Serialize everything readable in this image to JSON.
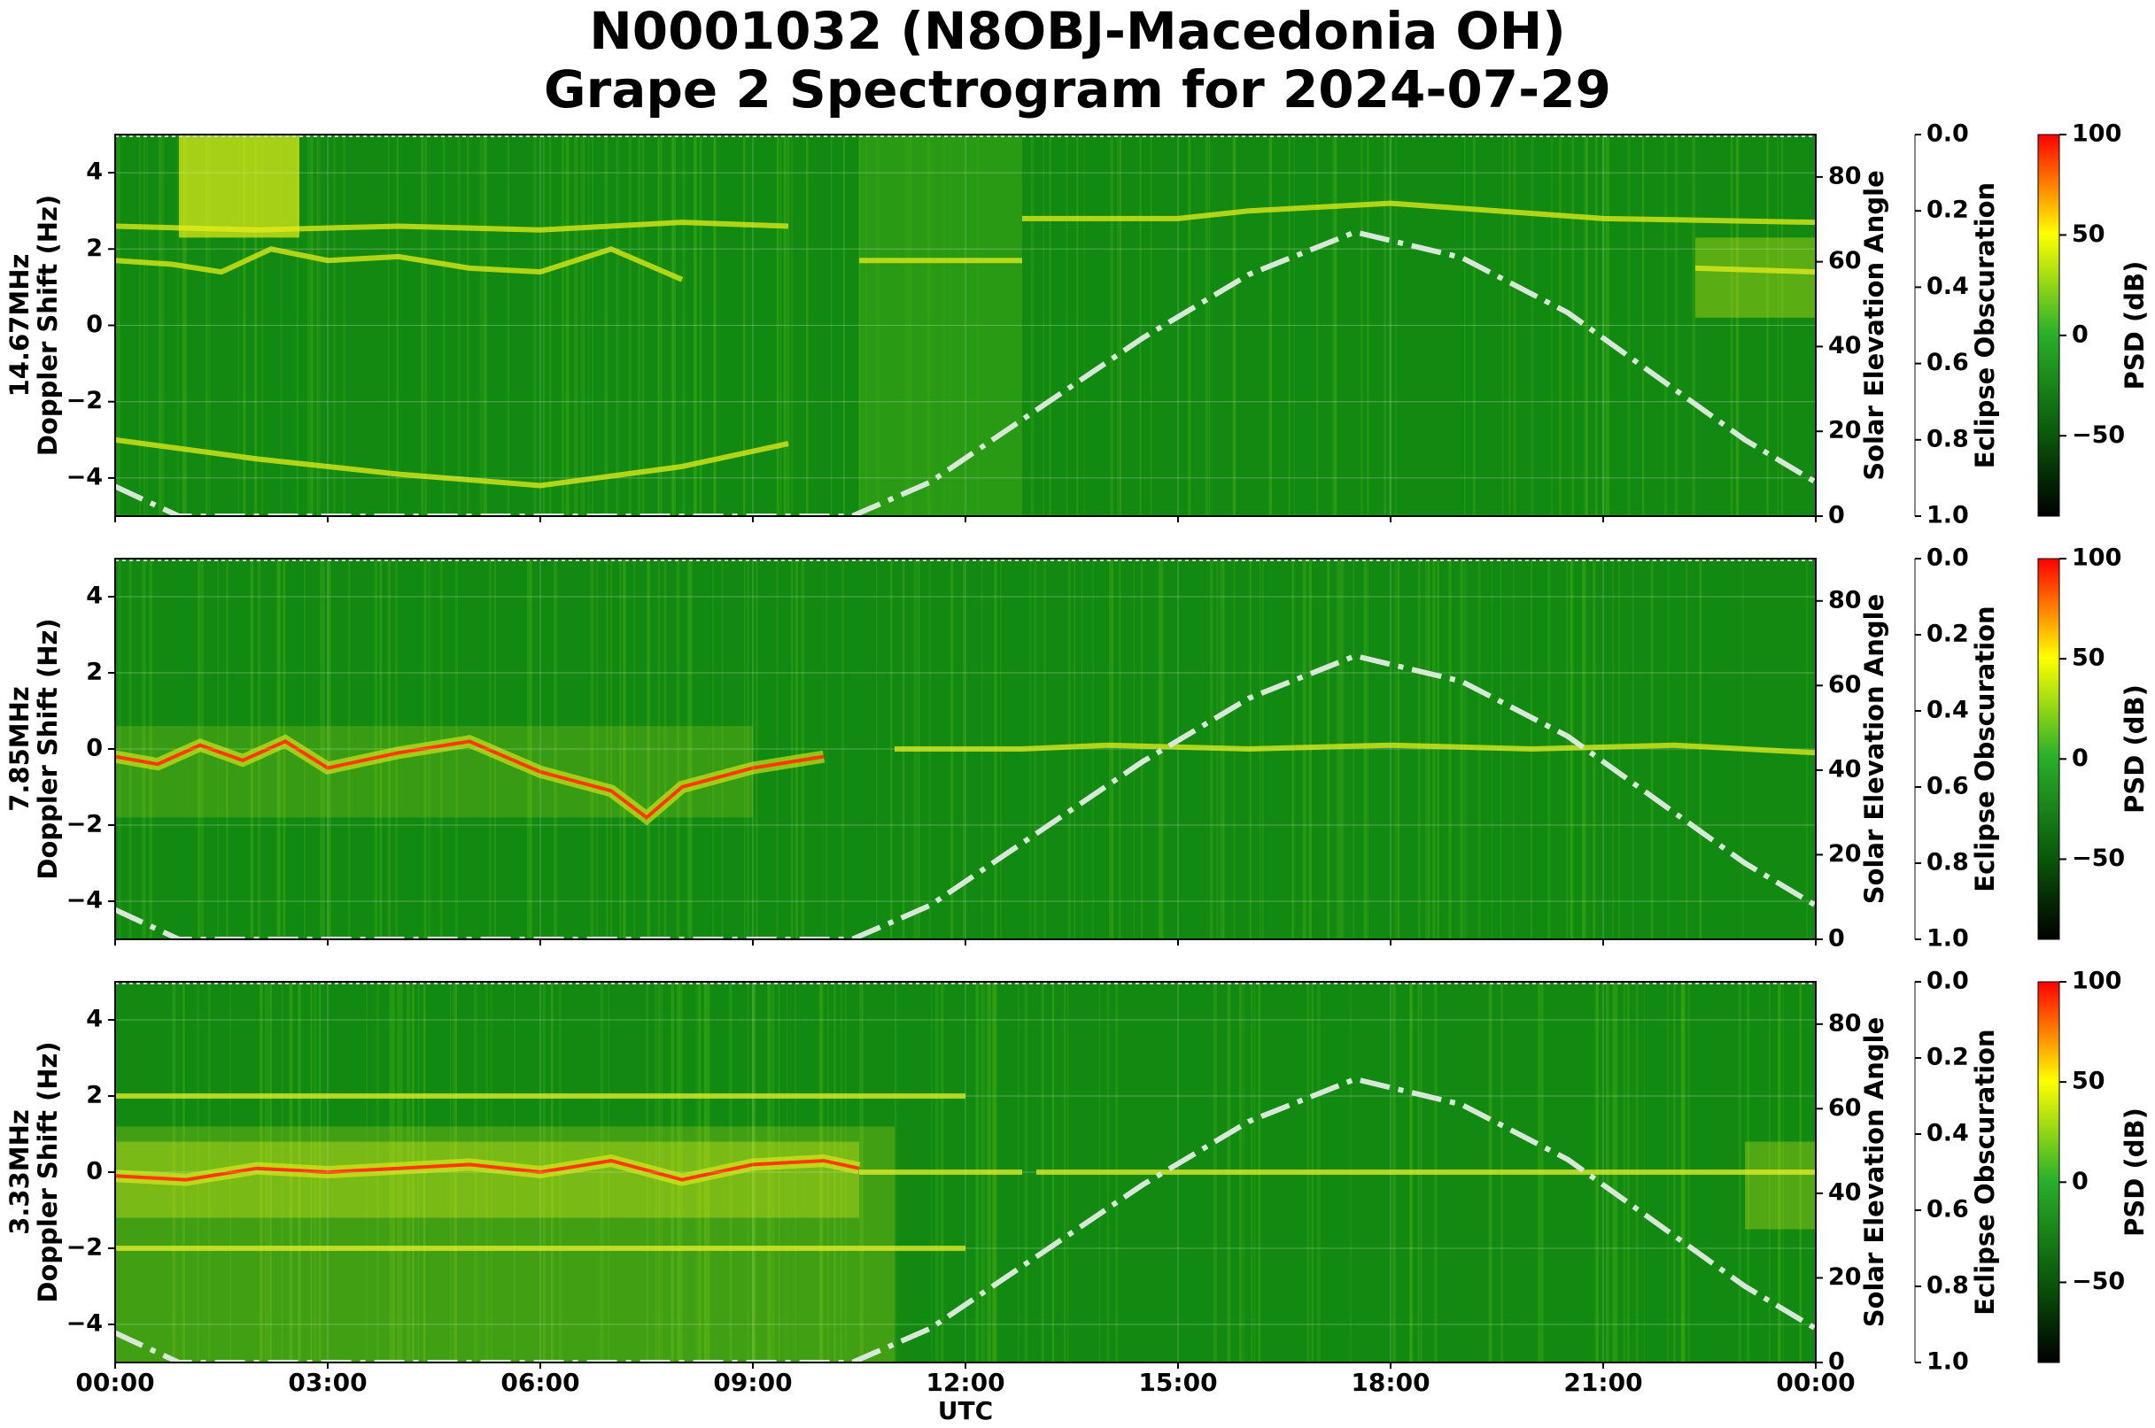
{
  "title_line1": "N0001032 (N8OBJ-Macedonia OH)",
  "title_line2": "Grape 2 Spectrogram for 2024-07-29",
  "x_axis": {
    "label": "UTC",
    "tick_labels": [
      "00:00",
      "03:00",
      "06:00",
      "09:00",
      "12:00",
      "15:00",
      "18:00",
      "21:00",
      "00:00"
    ]
  },
  "colors": {
    "background_green": "#128a12",
    "noise_green": "#3aa814",
    "signal_yellow": "#e6ee1a",
    "signal_red": "#ff3a00",
    "solar_curve": "#d8e8d8"
  },
  "chart_data": [
    {
      "type": "heatmap",
      "frequency_label": "14.67MHz",
      "ylabel": "Doppler Shift (Hz)",
      "ylim": [
        -5,
        5
      ],
      "y_tick_labels": [
        "4",
        "2",
        "0",
        "−2",
        "−4"
      ],
      "right_axis": {
        "label": "Solar Elevation Angle",
        "ylim": [
          0,
          90
        ],
        "tick_labels": [
          "80",
          "60",
          "40",
          "20",
          "0"
        ]
      },
      "eclipse_axis": {
        "label": "Eclipse Obscuration",
        "ylim": [
          1.0,
          0.0
        ],
        "tick_labels": [
          "0.0",
          "0.2",
          "0.4",
          "0.6",
          "0.8",
          "1.0"
        ]
      },
      "colorbar": {
        "label": "PSD (dB)",
        "range": [
          -90,
          100
        ],
        "tick_labels": [
          "100",
          "50",
          "0",
          "−50"
        ]
      },
      "traces": [
        {
          "name": "",
          "hours": [
            0,
            0.8,
            1.5,
            2.2,
            3,
            4,
            5,
            6,
            7,
            8
          ],
          "doppler": [
            1.7,
            1.6,
            1.4,
            2.0,
            1.7,
            1.8,
            1.5,
            1.4,
            2.0,
            1.2
          ]
        },
        {
          "name": "",
          "hours": [
            0,
            2,
            4,
            6,
            8,
            9.5
          ],
          "doppler": [
            2.6,
            2.5,
            2.6,
            2.5,
            2.7,
            2.6
          ]
        },
        {
          "name": "",
          "hours": [
            10.5,
            12.8
          ],
          "doppler": [
            1.7,
            1.7
          ]
        },
        {
          "name": "",
          "hours": [
            12.8,
            15,
            16,
            18,
            19.5,
            21,
            24
          ],
          "doppler": [
            2.8,
            2.8,
            3.0,
            3.2,
            3.0,
            2.8,
            2.7
          ]
        },
        {
          "name": "",
          "hours": [
            22.3,
            24
          ],
          "doppler": [
            1.5,
            1.4
          ]
        },
        {
          "name": "",
          "hours": [
            0,
            2,
            4,
            6,
            8,
            9.5
          ],
          "doppler": [
            -3.0,
            -3.5,
            -3.9,
            -4.2,
            -3.7,
            -3.1
          ]
        }
      ]
    },
    {
      "type": "heatmap",
      "frequency_label": "7.85MHz",
      "ylabel": "Doppler Shift (Hz)",
      "ylim": [
        -5,
        5
      ],
      "y_tick_labels": [
        "4",
        "2",
        "0",
        "−2",
        "−4"
      ],
      "right_axis": {
        "label": "Solar Elevation Angle",
        "ylim": [
          0,
          90
        ],
        "tick_labels": [
          "80",
          "60",
          "40",
          "20",
          "0"
        ]
      },
      "eclipse_axis": {
        "label": "Eclipse Obscuration",
        "ylim": [
          1.0,
          0.0
        ],
        "tick_labels": [
          "0.0",
          "0.2",
          "0.4",
          "0.6",
          "0.8",
          "1.0"
        ]
      },
      "colorbar": {
        "label": "PSD (dB)",
        "range": [
          -90,
          100
        ],
        "tick_labels": [
          "100",
          "50",
          "0",
          "−50"
        ]
      },
      "traces": [
        {
          "name": "",
          "hours": [
            0,
            0.6,
            1.2,
            1.8,
            2.4,
            3,
            4,
            5,
            6,
            7,
            7.5,
            8,
            9,
            10
          ],
          "doppler": [
            -0.2,
            -0.4,
            0.1,
            -0.3,
            0.2,
            -0.5,
            -0.1,
            0.2,
            -0.6,
            -1.1,
            -1.8,
            -1.0,
            -0.5,
            -0.2
          ]
        },
        {
          "name": "",
          "hours": [
            11,
            12,
            12.8,
            14,
            16,
            18,
            20,
            22,
            24
          ],
          "doppler": [
            0.0,
            0.0,
            0.0,
            0.1,
            0.0,
            0.1,
            0.0,
            0.1,
            -0.1
          ]
        }
      ]
    },
    {
      "type": "heatmap",
      "frequency_label": "3.33MHz",
      "ylabel": "Doppler Shift (Hz)",
      "ylim": [
        -5,
        5
      ],
      "y_tick_labels": [
        "4",
        "2",
        "0",
        "−2",
        "−4"
      ],
      "right_axis": {
        "label": "Solar Elevation Angle",
        "ylim": [
          0,
          90
        ],
        "tick_labels": [
          "80",
          "60",
          "40",
          "20",
          "0"
        ]
      },
      "eclipse_axis": {
        "label": "Eclipse Obscuration",
        "ylim": [
          1.0,
          0.0
        ],
        "tick_labels": [
          "0.0",
          "0.2",
          "0.4",
          "0.6",
          "0.8",
          "1.0"
        ]
      },
      "colorbar": {
        "label": "PSD (dB)",
        "range": [
          -90,
          100
        ],
        "tick_labels": [
          "100",
          "50",
          "0",
          "−50"
        ]
      },
      "traces": [
        {
          "name": "",
          "hours": [
            0,
            1,
            2,
            3,
            4,
            5,
            6,
            7,
            8,
            9,
            10,
            10.5
          ],
          "doppler": [
            -0.1,
            -0.2,
            0.1,
            0.0,
            0.1,
            0.2,
            0.0,
            0.3,
            -0.2,
            0.2,
            0.3,
            0.1
          ]
        },
        {
          "name": "",
          "hours": [
            10.5,
            12.8
          ],
          "doppler": [
            0.0,
            0.0
          ]
        },
        {
          "name": "",
          "hours": [
            13,
            24
          ],
          "doppler": [
            0.0,
            0.0
          ]
        },
        {
          "name": "",
          "hours": [
            0,
            12
          ],
          "doppler": [
            2.0,
            2.0
          ]
        },
        {
          "name": "",
          "hours": [
            0,
            12
          ],
          "doppler": [
            -2.0,
            -2.0
          ]
        }
      ]
    }
  ],
  "solar_elevation_deg": {
    "hours": [
      0,
      0.9,
      10.4,
      11.5,
      13,
      14.5,
      16,
      17.5,
      19,
      20.5,
      22,
      23,
      24
    ],
    "values": [
      7,
      0,
      0,
      8,
      25,
      42,
      57,
      67,
      61,
      48,
      30,
      18,
      8
    ]
  }
}
